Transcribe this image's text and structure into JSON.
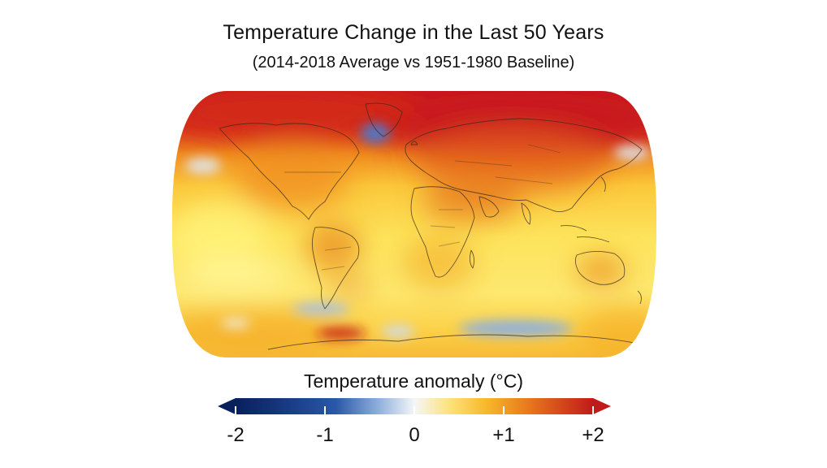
{
  "title": "Temperature Change in the Last 50 Years",
  "subtitle": "(2014-2018 Average vs 1951-1980 Baseline)",
  "legend": {
    "title": "Temperature anomaly (°C)",
    "ticks": [
      {
        "label": "-2",
        "value": -2
      },
      {
        "label": "-1",
        "value": -1
      },
      {
        "label": "0",
        "value": 0
      },
      {
        "label": "+1",
        "value": 1
      },
      {
        "label": "+2",
        "value": 2
      }
    ],
    "range": [
      -2,
      2
    ],
    "colors": [
      "#08205c",
      "#2a58a8",
      "#8fb0dc",
      "#f4f6f8",
      "#fde27a",
      "#f7b92a",
      "#e8781c",
      "#c01a1a"
    ]
  },
  "map": {
    "projection": "robinson",
    "palette": {
      "warm_hot": "#c8141c",
      "warm_strong": "#e4641c",
      "warm_mid": "#f2a21e",
      "warm_light": "#fdd44a",
      "warm_pale": "#fff27a",
      "cool": "#6f94d4",
      "coastline": "#3a2a1a"
    }
  }
}
